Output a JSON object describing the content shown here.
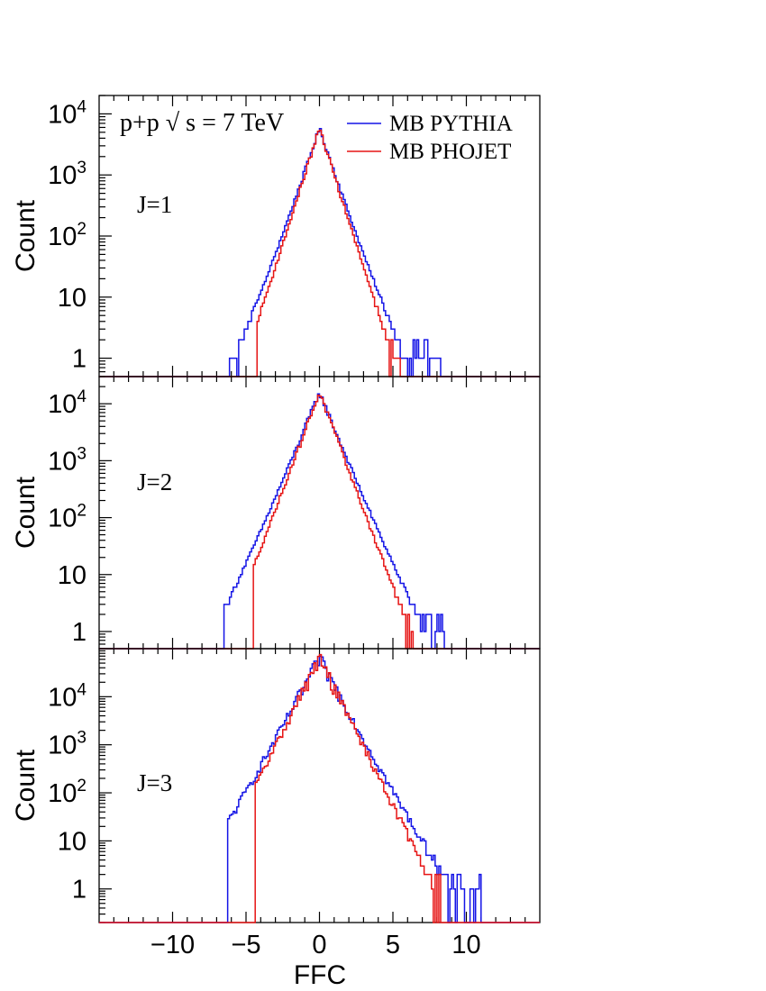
{
  "chart_data": [
    {
      "type": "line",
      "panel_label": "J=1",
      "ylabel": "Count",
      "yscale": "log",
      "ylim": [
        0.5,
        20000
      ],
      "xlim": [
        -15,
        15
      ],
      "x_ticks": [
        -10,
        -5,
        0,
        5,
        10
      ],
      "y_ticks": [
        {
          "value": 1,
          "label": "1",
          "sup": ""
        },
        {
          "value": 10,
          "label": "10",
          "sup": ""
        },
        {
          "value": 100,
          "label": "10",
          "sup": "2"
        },
        {
          "value": 1000,
          "label": "10",
          "sup": "3"
        },
        {
          "value": 10000,
          "label": "10",
          "sup": "4"
        }
      ],
      "annotation": {
        "text": "p+p  ",
        "sqrt": "s",
        "tail": " = 7 TeV"
      },
      "legend": {
        "placement": "top-right"
      },
      "series": [
        {
          "name": "MB PYTHIA",
          "color": "#1414e6",
          "core_width": 0.6,
          "tail_width": 0.95,
          "min_x": -6.1,
          "max_x": 8.5,
          "noise": 0.06
        },
        {
          "name": "MB PHOJET",
          "color": "#e61414",
          "core_width": 0.56,
          "tail_width": 0.72,
          "min_x": -4.3,
          "max_x": 5.9,
          "noise": 0.06
        }
      ],
      "peak": {
        "x": 0,
        "value": 5500
      }
    },
    {
      "type": "line",
      "panel_label": "J=2",
      "ylabel": "Count",
      "yscale": "log",
      "ylim": [
        0.5,
        30000
      ],
      "xlim": [
        -15,
        15
      ],
      "x_ticks": [
        -10,
        -5,
        0,
        5,
        10
      ],
      "y_ticks": [
        {
          "value": 1,
          "label": "1",
          "sup": ""
        },
        {
          "value": 10,
          "label": "10",
          "sup": ""
        },
        {
          "value": 100,
          "label": "10",
          "sup": "2"
        },
        {
          "value": 1000,
          "label": "10",
          "sup": "3"
        },
        {
          "value": 10000,
          "label": "10",
          "sup": "4"
        }
      ],
      "series": [
        {
          "name": "MB PYTHIA",
          "color": "#1414e6",
          "core_width": 0.68,
          "tail_width": 1.0,
          "min_x": -6.5,
          "max_x": 8.5,
          "noise": 0.08
        },
        {
          "name": "MB PHOJET",
          "color": "#e61414",
          "core_width": 0.62,
          "tail_width": 0.78,
          "min_x": -4.5,
          "max_x": 6.4,
          "noise": 0.08
        }
      ],
      "peak": {
        "x": 0,
        "value": 15000
      }
    },
    {
      "type": "line",
      "panel_label": "J=3",
      "ylabel": "Count",
      "yscale": "log",
      "ylim": [
        0.2,
        100000
      ],
      "xlim": [
        -15,
        15
      ],
      "x_ticks": [
        -10,
        -5,
        0,
        5,
        10
      ],
      "x_tick_labels": [
        "−10",
        "−5",
        "0",
        "5",
        "10"
      ],
      "xlabel": "FFC",
      "y_ticks": [
        {
          "value": 1,
          "label": "1",
          "sup": ""
        },
        {
          "value": 10,
          "label": "10",
          "sup": ""
        },
        {
          "value": 100,
          "label": "10",
          "sup": "2"
        },
        {
          "value": 1000,
          "label": "10",
          "sup": "3"
        },
        {
          "value": 10000,
          "label": "10",
          "sup": "4"
        }
      ],
      "series": [
        {
          "name": "MB PYTHIA",
          "color": "#1414e6",
          "core_width": 0.75,
          "tail_width": 1.05,
          "min_x": -6.3,
          "max_x": 11.0,
          "noise": 0.22
        },
        {
          "name": "MB PHOJET",
          "color": "#e61414",
          "core_width": 0.7,
          "tail_width": 0.82,
          "min_x": -4.4,
          "max_x": 8.3,
          "noise": 0.22
        }
      ],
      "peak": {
        "x": 0,
        "value": 60000
      }
    }
  ]
}
